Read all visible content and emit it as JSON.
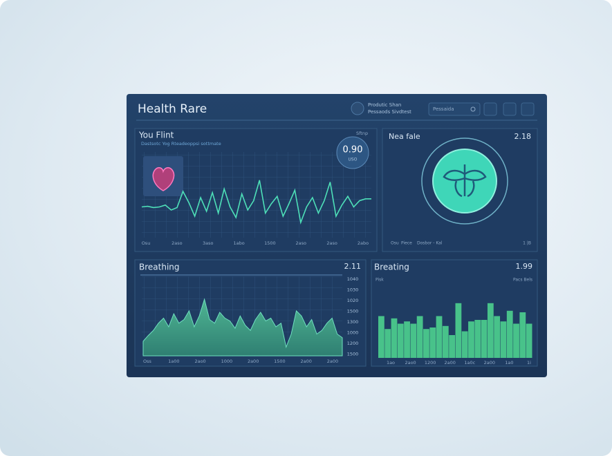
{
  "header": {
    "title": "Health Rare",
    "status_line1": "Produtic Shan",
    "status_line2": "Pessaods Sivdtest",
    "search": "Pessaida"
  },
  "panels": [
    {
      "title": "You Flint",
      "subtitle": "Dastsotc Yog Rteadeoppsi sottmate",
      "corner": "Sftnp",
      "badge_value": "0.90",
      "badge_unit": "USO",
      "x_labels": [
        "Osu",
        "2aso",
        "3aso",
        "1abo",
        "1500",
        "2aso",
        "2aso",
        "2abo"
      ],
      "values": [
        45,
        46,
        44,
        45,
        48,
        40,
        44,
        70,
        52,
        30,
        60,
        38,
        68,
        35,
        74,
        45,
        28,
        66,
        40,
        55,
        88,
        35,
        50,
        62,
        30,
        50,
        72,
        20,
        45,
        60,
        35,
        55,
        85,
        30,
        48,
        62,
        45,
        55,
        58,
        58
      ]
    },
    {
      "title": "Nea fale",
      "corner": "2.18",
      "footer_left": [
        "Osu",
        "Piece",
        "Dosbor - Kal"
      ],
      "footer_right": "1 |B"
    },
    {
      "title": "Breathing",
      "corner": "2.11",
      "y_labels": [
        "1040",
        "1030",
        "1020",
        "1500",
        "1300",
        "1000",
        "1200",
        "1500"
      ],
      "x_labels": [
        "Oss",
        "1a00",
        "2ao0",
        "1000",
        "2a00",
        "1500",
        "2a00",
        "2a00"
      ],
      "values": [
        20,
        28,
        35,
        45,
        52,
        40,
        58,
        45,
        50,
        62,
        40,
        55,
        78,
        50,
        45,
        60,
        52,
        48,
        38,
        55,
        42,
        35,
        50,
        60,
        48,
        52,
        40,
        45,
        12,
        30,
        62,
        55,
        40,
        50,
        30,
        35,
        45,
        52,
        30,
        25
      ]
    },
    {
      "title": "Breating",
      "corner": "1.99",
      "left_note": "Pisk",
      "right_note": "Pacs Bels",
      "x_labels": [
        "1ao",
        "2ao0",
        "1200",
        "2a00",
        "1a0c",
        "2a00",
        "1a0",
        "1i"
      ],
      "values": [
        55,
        38,
        52,
        45,
        48,
        45,
        55,
        38,
        40,
        55,
        42,
        30,
        72,
        35,
        48,
        50,
        50,
        72,
        55,
        48,
        62,
        45,
        60,
        45
      ]
    }
  ]
}
